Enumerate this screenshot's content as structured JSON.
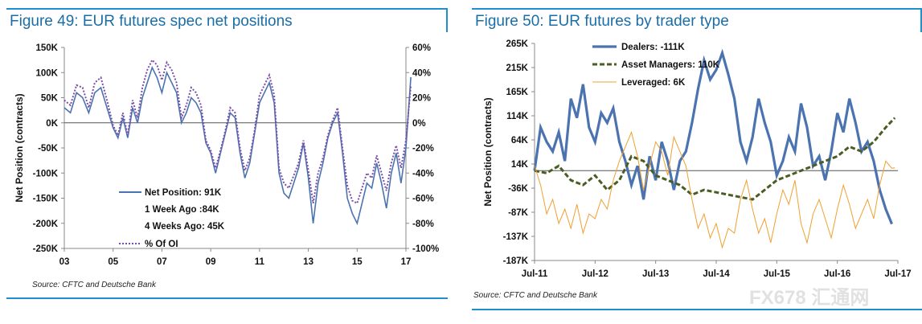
{
  "figures": [
    {
      "title": "Figure 49: EUR futures spec net positions",
      "source": "Source: CFTC and Deutsche Bank"
    },
    {
      "title": "Figure 50: EUR futures by trader type",
      "source": "Source: CFTC and Deutsche Bank"
    }
  ],
  "watermark": "FX678 汇通网",
  "chart_data": [
    {
      "type": "line",
      "ylabel": "Net Position (contracts)",
      "ylim": [
        -250000,
        150000
      ],
      "y_ticks": [
        "150K",
        "100K",
        "50K",
        "0K",
        "-50K",
        "-100K",
        "-150K",
        "-200K",
        "-250K"
      ],
      "y2lim": [
        -100,
        60
      ],
      "y2_ticks": [
        "60%",
        "40%",
        "20%",
        "0%",
        "-20%",
        "-40%",
        "-60%",
        "-80%",
        "-100%"
      ],
      "x_ticks": [
        "03",
        "05",
        "07",
        "09",
        "11",
        "13",
        "15",
        "17"
      ],
      "xlim": [
        2003,
        2017
      ],
      "legend_position": "bottom-left",
      "legend": [
        "Net Position: 91K",
        "1 Week Ago :84K",
        "4 Weeks Ago: 45K",
        "% Of OI"
      ],
      "series": [
        {
          "name": "Net Position",
          "axis": "left",
          "color": "#4a73b0",
          "x": [
            2003.0,
            2003.25,
            2003.5,
            2003.75,
            2004.0,
            2004.25,
            2004.5,
            2004.75,
            2005.0,
            2005.2,
            2005.4,
            2005.6,
            2005.8,
            2006.0,
            2006.2,
            2006.4,
            2006.6,
            2006.8,
            2007.0,
            2007.2,
            2007.4,
            2007.6,
            2007.8,
            2008.0,
            2008.2,
            2008.4,
            2008.6,
            2008.8,
            2009.0,
            2009.2,
            2009.4,
            2009.6,
            2009.8,
            2010.0,
            2010.2,
            2010.4,
            2010.6,
            2010.8,
            2011.0,
            2011.2,
            2011.4,
            2011.6,
            2011.8,
            2012.0,
            2012.2,
            2012.4,
            2012.6,
            2012.8,
            2013.0,
            2013.2,
            2013.4,
            2013.6,
            2013.8,
            2014.0,
            2014.2,
            2014.4,
            2014.6,
            2014.8,
            2015.0,
            2015.2,
            2015.4,
            2015.6,
            2015.8,
            2016.0,
            2016.2,
            2016.4,
            2016.6,
            2016.8,
            2017.0,
            2017.2
          ],
          "values": [
            30000,
            20000,
            60000,
            50000,
            20000,
            60000,
            70000,
            30000,
            -10000,
            -30000,
            10000,
            -30000,
            30000,
            0,
            50000,
            80000,
            110000,
            90000,
            60000,
            100000,
            80000,
            60000,
            0,
            20000,
            50000,
            40000,
            20000,
            -40000,
            -60000,
            -100000,
            -60000,
            -20000,
            20000,
            10000,
            -60000,
            -110000,
            -80000,
            -20000,
            40000,
            60000,
            80000,
            40000,
            -100000,
            -140000,
            -150000,
            -120000,
            -90000,
            -40000,
            -110000,
            -200000,
            -120000,
            -80000,
            -30000,
            0,
            20000,
            -60000,
            -150000,
            -180000,
            -200000,
            -160000,
            -120000,
            -130000,
            -80000,
            -120000,
            -170000,
            -100000,
            -60000,
            -120000,
            -50000,
            91000
          ]
        },
        {
          "name": "% Of OI",
          "axis": "right",
          "color": "#7a4fa8",
          "x": [
            2003.0,
            2003.25,
            2003.5,
            2003.75,
            2004.0,
            2004.25,
            2004.5,
            2004.75,
            2005.0,
            2005.2,
            2005.4,
            2005.6,
            2005.8,
            2006.0,
            2006.2,
            2006.4,
            2006.6,
            2006.8,
            2007.0,
            2007.2,
            2007.4,
            2007.6,
            2007.8,
            2008.0,
            2008.2,
            2008.4,
            2008.6,
            2008.8,
            2009.0,
            2009.2,
            2009.4,
            2009.6,
            2009.8,
            2010.0,
            2010.2,
            2010.4,
            2010.6,
            2010.8,
            2011.0,
            2011.2,
            2011.4,
            2011.6,
            2011.8,
            2012.0,
            2012.2,
            2012.4,
            2012.6,
            2012.8,
            2013.0,
            2013.2,
            2013.4,
            2013.6,
            2013.8,
            2014.0,
            2014.2,
            2014.4,
            2014.6,
            2014.8,
            2015.0,
            2015.2,
            2015.4,
            2015.6,
            2015.8,
            2016.0,
            2016.2,
            2016.4,
            2016.6,
            2016.8,
            2017.0,
            2017.2
          ],
          "values": [
            18,
            14,
            30,
            28,
            12,
            32,
            36,
            18,
            -2,
            -10,
            8,
            -10,
            18,
            4,
            28,
            42,
            50,
            46,
            34,
            48,
            42,
            32,
            4,
            14,
            28,
            24,
            14,
            -14,
            -22,
            -36,
            -22,
            -6,
            12,
            8,
            -20,
            -38,
            -28,
            -6,
            22,
            30,
            38,
            22,
            -36,
            -48,
            -52,
            -42,
            -32,
            -14,
            -38,
            -64,
            -40,
            -28,
            -10,
            2,
            12,
            -20,
            -50,
            -62,
            -64,
            -52,
            -40,
            -44,
            -26,
            -40,
            -54,
            -32,
            -18,
            -36,
            -14,
            30
          ]
        }
      ]
    },
    {
      "type": "line",
      "ylabel": "Net Position (contracts)",
      "ylim": [
        -187000,
        265000
      ],
      "y_ticks": [
        "265K",
        "215K",
        "165K",
        "114K",
        "64K",
        "14K",
        "-36K",
        "-87K",
        "-137K",
        "-187K"
      ],
      "x_ticks": [
        "Jul-11",
        "Jul-12",
        "Jul-13",
        "Jul-14",
        "Jul-15",
        "Jul-16",
        "Jul-17"
      ],
      "xlim": [
        2011.5,
        2017.5
      ],
      "legend_position": "top-left",
      "legend": [
        "Dealers: -111K",
        "Asset Managers: 110K",
        "Leveraged: 6K"
      ],
      "series": [
        {
          "name": "Dealers",
          "color": "#4a73b0",
          "x": [
            2011.5,
            2011.6,
            2011.7,
            2011.8,
            2011.9,
            2012.0,
            2012.1,
            2012.2,
            2012.3,
            2012.4,
            2012.5,
            2012.6,
            2012.7,
            2012.8,
            2012.9,
            2013.0,
            2013.1,
            2013.2,
            2013.3,
            2013.4,
            2013.5,
            2013.6,
            2013.7,
            2013.8,
            2013.9,
            2014.0,
            2014.1,
            2014.2,
            2014.3,
            2014.4,
            2014.5,
            2014.6,
            2014.7,
            2014.8,
            2014.9,
            2015.0,
            2015.1,
            2015.2,
            2015.3,
            2015.4,
            2015.5,
            2015.6,
            2015.7,
            2015.8,
            2015.9,
            2016.0,
            2016.1,
            2016.2,
            2016.3,
            2016.4,
            2016.5,
            2016.6,
            2016.7,
            2016.8,
            2016.9,
            2017.0,
            2017.1,
            2017.2,
            2017.3,
            2017.4
          ],
          "values": [
            0,
            90,
            60,
            40,
            80,
            20,
            150,
            110,
            180,
            90,
            60,
            120,
            100,
            130,
            60,
            20,
            -30,
            10,
            -60,
            30,
            -20,
            60,
            20,
            -40,
            20,
            40,
            100,
            170,
            230,
            190,
            210,
            245,
            200,
            150,
            60,
            20,
            70,
            150,
            100,
            60,
            -10,
            20,
            70,
            40,
            140,
            90,
            10,
            30,
            -20,
            40,
            120,
            80,
            150,
            100,
            40,
            60,
            20,
            -40,
            -80,
            -111
          ]
        },
        {
          "name": "Asset Managers",
          "color": "#4a5e24",
          "x": [
            2011.5,
            2011.7,
            2011.9,
            2012.1,
            2012.3,
            2012.5,
            2012.7,
            2012.9,
            2013.1,
            2013.3,
            2013.5,
            2013.7,
            2013.9,
            2014.1,
            2014.3,
            2014.5,
            2014.7,
            2014.9,
            2015.1,
            2015.3,
            2015.5,
            2015.7,
            2015.9,
            2016.1,
            2016.3,
            2016.5,
            2016.7,
            2016.9,
            2017.1,
            2017.3,
            2017.45
          ],
          "values": [
            0,
            -5,
            10,
            -20,
            -30,
            -10,
            -40,
            -20,
            30,
            20,
            -10,
            -20,
            -30,
            -50,
            -40,
            -45,
            -50,
            -55,
            -60,
            -40,
            -20,
            -10,
            0,
            10,
            20,
            30,
            50,
            40,
            60,
            90,
            110
          ]
        },
        {
          "name": "Leveraged",
          "color": "#f0a030",
          "x": [
            2011.5,
            2011.6,
            2011.7,
            2011.8,
            2011.9,
            2012.0,
            2012.1,
            2012.2,
            2012.3,
            2012.4,
            2012.5,
            2012.6,
            2012.7,
            2012.8,
            2012.9,
            2013.0,
            2013.1,
            2013.2,
            2013.3,
            2013.4,
            2013.5,
            2013.6,
            2013.7,
            2013.8,
            2013.9,
            2014.0,
            2014.1,
            2014.2,
            2014.3,
            2014.4,
            2014.5,
            2014.6,
            2014.7,
            2014.8,
            2014.9,
            2015.0,
            2015.1,
            2015.2,
            2015.3,
            2015.4,
            2015.5,
            2015.6,
            2015.7,
            2015.8,
            2015.9,
            2016.0,
            2016.1,
            2016.2,
            2016.3,
            2016.4,
            2016.5,
            2016.6,
            2016.7,
            2016.8,
            2016.9,
            2017.0,
            2017.1,
            2017.2,
            2017.3,
            2017.4,
            2017.45
          ],
          "values": [
            10,
            -30,
            -90,
            -60,
            -110,
            -80,
            -120,
            -70,
            -130,
            -90,
            -100,
            -60,
            -80,
            -20,
            20,
            50,
            80,
            30,
            -40,
            10,
            60,
            40,
            -10,
            70,
            40,
            10,
            -60,
            -120,
            -90,
            -140,
            -110,
            -160,
            -120,
            -130,
            -60,
            -20,
            -80,
            -130,
            -100,
            -150,
            -90,
            -40,
            -70,
            -20,
            -110,
            -150,
            -90,
            -60,
            -100,
            -140,
            -80,
            -30,
            -70,
            -120,
            -90,
            -60,
            -100,
            -30,
            20,
            5,
            6
          ]
        }
      ]
    }
  ]
}
